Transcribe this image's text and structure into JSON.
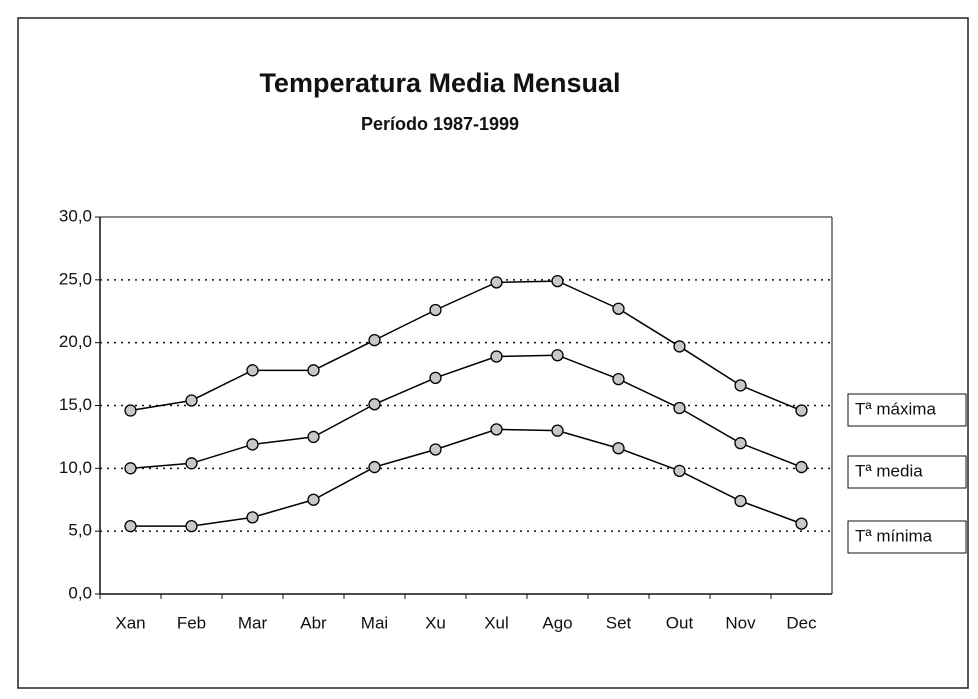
{
  "chart_data": {
    "type": "line",
    "title": "Temperatura Media Mensual",
    "subtitle": "Período 1987-1999",
    "categories": [
      "Xan",
      "Feb",
      "Mar",
      "Abr",
      "Mai",
      "Xu",
      "Xul",
      "Ago",
      "Set",
      "Out",
      "Nov",
      "Dec"
    ],
    "series": [
      {
        "name": "Tª máxima",
        "color": "#000000",
        "values": [
          14.6,
          15.4,
          17.8,
          17.8,
          20.2,
          22.6,
          24.8,
          24.9,
          22.7,
          19.7,
          16.6,
          14.6
        ]
      },
      {
        "name": "Tª media",
        "color": "#000000",
        "values": [
          10.0,
          10.4,
          11.9,
          12.5,
          15.1,
          17.2,
          18.9,
          19.0,
          17.1,
          14.8,
          12.0,
          10.1
        ]
      },
      {
        "name": "Tª mínima",
        "color": "#000000",
        "values": [
          5.4,
          5.4,
          6.1,
          7.5,
          10.1,
          11.5,
          13.1,
          13.0,
          11.6,
          9.8,
          7.4,
          5.6
        ]
      }
    ],
    "ylim": [
      0,
      30
    ],
    "yticks": [
      {
        "value": 0,
        "label": "0,0"
      },
      {
        "value": 5,
        "label": "5,0"
      },
      {
        "value": 10,
        "label": "10,0"
      },
      {
        "value": 15,
        "label": "15,0"
      },
      {
        "value": 20,
        "label": "20,0"
      },
      {
        "value": 25,
        "label": "25,0"
      },
      {
        "value": 30,
        "label": "30,0"
      }
    ],
    "grid": true,
    "legend": "right"
  }
}
